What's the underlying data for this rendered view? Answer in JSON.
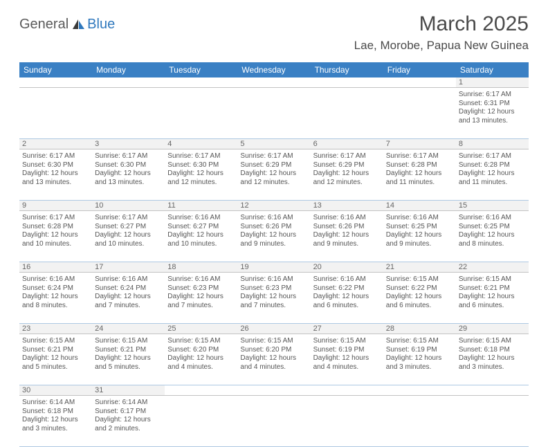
{
  "logo": {
    "text1": "General",
    "text2": "Blue",
    "sail_color": "#2f78bd",
    "text1_color": "#5a5a5a"
  },
  "title": "March 2025",
  "location": "Lae, Morobe, Papua New Guinea",
  "header_bg": "#3a80c4",
  "row_border_color": "#adc8e2",
  "num_strip_bg": "#f2f2f2",
  "text_color": "#555555",
  "dow": [
    "Sunday",
    "Monday",
    "Tuesday",
    "Wednesday",
    "Thursday",
    "Friday",
    "Saturday"
  ],
  "weeks": [
    [
      null,
      null,
      null,
      null,
      null,
      null,
      {
        "d": "1",
        "sr": "6:17 AM",
        "ss": "6:31 PM",
        "dl": "12 hours and 13 minutes."
      }
    ],
    [
      {
        "d": "2",
        "sr": "6:17 AM",
        "ss": "6:30 PM",
        "dl": "12 hours and 13 minutes."
      },
      {
        "d": "3",
        "sr": "6:17 AM",
        "ss": "6:30 PM",
        "dl": "12 hours and 13 minutes."
      },
      {
        "d": "4",
        "sr": "6:17 AM",
        "ss": "6:30 PM",
        "dl": "12 hours and 12 minutes."
      },
      {
        "d": "5",
        "sr": "6:17 AM",
        "ss": "6:29 PM",
        "dl": "12 hours and 12 minutes."
      },
      {
        "d": "6",
        "sr": "6:17 AM",
        "ss": "6:29 PM",
        "dl": "12 hours and 12 minutes."
      },
      {
        "d": "7",
        "sr": "6:17 AM",
        "ss": "6:28 PM",
        "dl": "12 hours and 11 minutes."
      },
      {
        "d": "8",
        "sr": "6:17 AM",
        "ss": "6:28 PM",
        "dl": "12 hours and 11 minutes."
      }
    ],
    [
      {
        "d": "9",
        "sr": "6:17 AM",
        "ss": "6:28 PM",
        "dl": "12 hours and 10 minutes."
      },
      {
        "d": "10",
        "sr": "6:17 AM",
        "ss": "6:27 PM",
        "dl": "12 hours and 10 minutes."
      },
      {
        "d": "11",
        "sr": "6:16 AM",
        "ss": "6:27 PM",
        "dl": "12 hours and 10 minutes."
      },
      {
        "d": "12",
        "sr": "6:16 AM",
        "ss": "6:26 PM",
        "dl": "12 hours and 9 minutes."
      },
      {
        "d": "13",
        "sr": "6:16 AM",
        "ss": "6:26 PM",
        "dl": "12 hours and 9 minutes."
      },
      {
        "d": "14",
        "sr": "6:16 AM",
        "ss": "6:25 PM",
        "dl": "12 hours and 9 minutes."
      },
      {
        "d": "15",
        "sr": "6:16 AM",
        "ss": "6:25 PM",
        "dl": "12 hours and 8 minutes."
      }
    ],
    [
      {
        "d": "16",
        "sr": "6:16 AM",
        "ss": "6:24 PM",
        "dl": "12 hours and 8 minutes."
      },
      {
        "d": "17",
        "sr": "6:16 AM",
        "ss": "6:24 PM",
        "dl": "12 hours and 7 minutes."
      },
      {
        "d": "18",
        "sr": "6:16 AM",
        "ss": "6:23 PM",
        "dl": "12 hours and 7 minutes."
      },
      {
        "d": "19",
        "sr": "6:16 AM",
        "ss": "6:23 PM",
        "dl": "12 hours and 7 minutes."
      },
      {
        "d": "20",
        "sr": "6:16 AM",
        "ss": "6:22 PM",
        "dl": "12 hours and 6 minutes."
      },
      {
        "d": "21",
        "sr": "6:15 AM",
        "ss": "6:22 PM",
        "dl": "12 hours and 6 minutes."
      },
      {
        "d": "22",
        "sr": "6:15 AM",
        "ss": "6:21 PM",
        "dl": "12 hours and 6 minutes."
      }
    ],
    [
      {
        "d": "23",
        "sr": "6:15 AM",
        "ss": "6:21 PM",
        "dl": "12 hours and 5 minutes."
      },
      {
        "d": "24",
        "sr": "6:15 AM",
        "ss": "6:21 PM",
        "dl": "12 hours and 5 minutes."
      },
      {
        "d": "25",
        "sr": "6:15 AM",
        "ss": "6:20 PM",
        "dl": "12 hours and 4 minutes."
      },
      {
        "d": "26",
        "sr": "6:15 AM",
        "ss": "6:20 PM",
        "dl": "12 hours and 4 minutes."
      },
      {
        "d": "27",
        "sr": "6:15 AM",
        "ss": "6:19 PM",
        "dl": "12 hours and 4 minutes."
      },
      {
        "d": "28",
        "sr": "6:15 AM",
        "ss": "6:19 PM",
        "dl": "12 hours and 3 minutes."
      },
      {
        "d": "29",
        "sr": "6:15 AM",
        "ss": "6:18 PM",
        "dl": "12 hours and 3 minutes."
      }
    ],
    [
      {
        "d": "30",
        "sr": "6:14 AM",
        "ss": "6:18 PM",
        "dl": "12 hours and 3 minutes."
      },
      {
        "d": "31",
        "sr": "6:14 AM",
        "ss": "6:17 PM",
        "dl": "12 hours and 2 minutes."
      },
      null,
      null,
      null,
      null,
      null
    ]
  ],
  "labels": {
    "sunrise": "Sunrise:",
    "sunset": "Sunset:",
    "daylight": "Daylight:"
  }
}
